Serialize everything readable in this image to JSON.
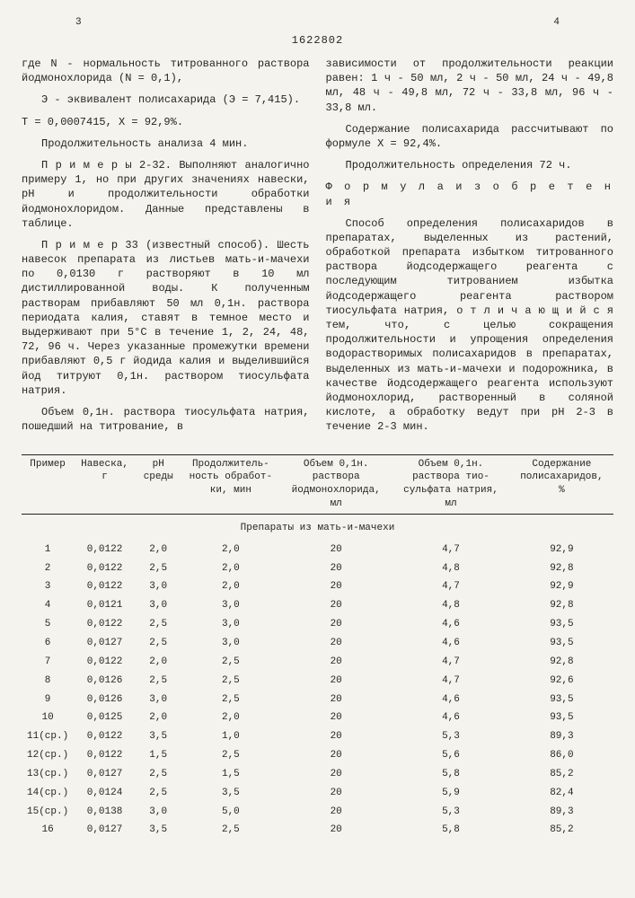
{
  "page_left_num": "3",
  "page_right_num": "4",
  "doc_number": "1622802",
  "left_col": {
    "para1_a": "где N - нормальность титрованного раствора йодмонохлорида (N = 0,1),",
    "para1_b": "Э - эквивалент полисахарида (Э = 7,415).",
    "para2": "T = 0,0007415, X = 92,9%.",
    "para3": "Продолжительность анализа 4 мин.",
    "para4": "П р и м е р ы  2-32. Выполняют аналогично примеру 1, но при других значениях навески, pH и продолжительности обработки йодмонохлоридом. Данные представлены в таблице.",
    "para5": "П р и м е р  33 (известный способ). Шесть навесок препарата из листьев мать-и-мачехи по 0,0130 г растворяют в 10 мл дистиллированной воды. К полученным растворам прибавляют 50 мл 0,1н. раствора периодата калия, ставят в темное место и выдерживают при 5°С в течение 1, 2, 24, 48, 72, 96 ч. Через указанные промежутки времени прибавляют 0,5 г йодида калия и выделившийся йод титруют 0,1н. раствором тиосульфата натрия.",
    "para6": "Объем 0,1н. раствора тиосульфата натрия, пошедший на титрование, в"
  },
  "right_col": {
    "para1": "зависимости от продолжительности реакции равен: 1 ч - 50 мл, 2 ч - 50 мл, 24 ч - 49,8 мл, 48 ч - 49,8 мл, 72 ч - 33,8 мл, 96 ч - 33,8 мл.",
    "para2": "Содержание полисахарида рассчитывают по формуле X = 92,4%.",
    "para3": "Продолжительность определения 72 ч.",
    "formula_title": "Ф о р м у л а  и з о б р е т е н и я",
    "para4": "Способ определения полисахаридов в препаратах, выделенных из растений, обработкой препарата избытком титрованного раствора йодсодержащего реагента с последующим титрованием избытка йодсодержащего реагента раствором тиосульфата натрия, о т л и ч а ю щ и й с я  тем, что, с целью сокращения продолжительности и упрощения определения водорастворимых полисахаридов в препаратах, выделенных из мать-и-мачехи и подорожника, в качестве йодсодержащего реагента используют йодмонохлорид, растворенный в соляной кислоте, а обработку ведут при pH 2-3 в течение 2-3 мин."
  },
  "table": {
    "headers": [
      "Пример",
      "Навеска, г",
      "pH среды",
      "Продол­житель­ность обработ­ки, мин",
      "Объем 0,1н. раствора йодмоно­хлорида, мл",
      "Объем 0,1н. раство­ра тио­сульфата натрия, мл",
      "Содержание полисахари­дов, %"
    ],
    "subheading": "Препараты из мать-и-мачехи",
    "rows": [
      [
        "1",
        "0,0122",
        "2,0",
        "2,0",
        "20",
        "4,7",
        "92,9"
      ],
      [
        "2",
        "0,0122",
        "2,5",
        "2,0",
        "20",
        "4,8",
        "92,8"
      ],
      [
        "3",
        "0,0122",
        "3,0",
        "2,0",
        "20",
        "4,7",
        "92,9"
      ],
      [
        "4",
        "0,0121",
        "3,0",
        "3,0",
        "20",
        "4,8",
        "92,8"
      ],
      [
        "5",
        "0,0122",
        "2,5",
        "3,0",
        "20",
        "4,6",
        "93,5"
      ],
      [
        "6",
        "0,0127",
        "2,5",
        "3,0",
        "20",
        "4,6",
        "93,5"
      ],
      [
        "7",
        "0,0122",
        "2,0",
        "2,5",
        "20",
        "4,7",
        "92,8"
      ],
      [
        "8",
        "0,0126",
        "2,5",
        "2,5",
        "20",
        "4,7",
        "92,6"
      ],
      [
        "9",
        "0,0126",
        "3,0",
        "2,5",
        "20",
        "4,6",
        "93,5"
      ],
      [
        "10",
        "0,0125",
        "2,0",
        "2,0",
        "20",
        "4,6",
        "93,5"
      ],
      [
        "11(ср.)",
        "0,0122",
        "3,5",
        "1,0",
        "20",
        "5,3",
        "89,3"
      ],
      [
        "12(ср.)",
        "0,0122",
        "1,5",
        "2,5",
        "20",
        "5,6",
        "86,0"
      ],
      [
        "13(ср.)",
        "0,0127",
        "2,5",
        "1,5",
        "20",
        "5,8",
        "85,2"
      ],
      [
        "14(ср.)",
        "0,0124",
        "2,5",
        "3,5",
        "20",
        "5,9",
        "82,4"
      ],
      [
        "15(ср.)",
        "0,0138",
        "3,0",
        "5,0",
        "20",
        "5,3",
        "89,3"
      ],
      [
        "16",
        "0,0127",
        "3,5",
        "2,5",
        "20",
        "5,8",
        "85,2"
      ]
    ]
  }
}
